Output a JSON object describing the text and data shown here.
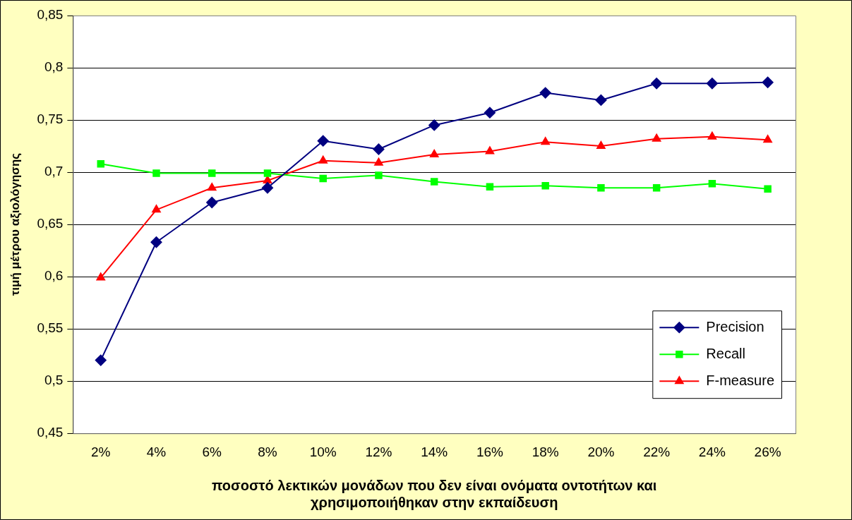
{
  "chart_data": {
    "type": "line",
    "xlabel": "ποσοστό λεκτικών μονάδων που δεν είναι ονόματα οντοτήτων και\nχρησιμοποιήθηκαν στην εκπαίδευση",
    "ylabel": "τιμή μέτρου αξιολόγησης",
    "categories": [
      "2%",
      "4%",
      "6%",
      "8%",
      "10%",
      "12%",
      "14%",
      "16%",
      "18%",
      "20%",
      "22%",
      "24%",
      "26%"
    ],
    "series": [
      {
        "name": "Precision",
        "color": "#000080",
        "marker": "diamond",
        "values": [
          0.52,
          0.633,
          0.671,
          0.685,
          0.73,
          0.722,
          0.745,
          0.757,
          0.776,
          0.769,
          0.785,
          0.785,
          0.786
        ]
      },
      {
        "name": "Recall",
        "color": "#00ff00",
        "marker": "square",
        "values": [
          0.708,
          0.699,
          0.699,
          0.699,
          0.694,
          0.697,
          0.691,
          0.686,
          0.687,
          0.685,
          0.685,
          0.689,
          0.684
        ]
      },
      {
        "name": "F-measure",
        "color": "#ff0000",
        "marker": "triangle",
        "values": [
          0.599,
          0.664,
          0.685,
          0.692,
          0.711,
          0.709,
          0.717,
          0.72,
          0.729,
          0.725,
          0.732,
          0.734,
          0.731
        ]
      }
    ],
    "ylim": [
      0.45,
      0.85
    ],
    "yticks": [
      {
        "value": 0.45,
        "label": "0,45"
      },
      {
        "value": 0.5,
        "label": "0,5"
      },
      {
        "value": 0.55,
        "label": "0,55"
      },
      {
        "value": 0.6,
        "label": "0,6"
      },
      {
        "value": 0.65,
        "label": "0,65"
      },
      {
        "value": 0.7,
        "label": "0,7"
      },
      {
        "value": 0.75,
        "label": "0,75"
      },
      {
        "value": 0.8,
        "label": "0,8"
      },
      {
        "value": 0.85,
        "label": "0,85"
      }
    ],
    "grid": "y",
    "legend": "bottom right"
  }
}
